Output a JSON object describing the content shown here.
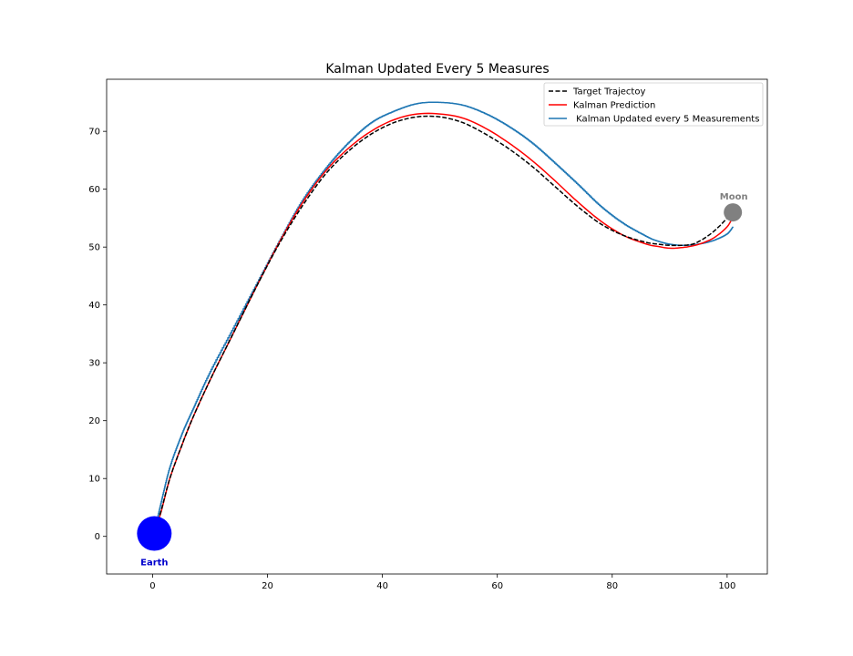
{
  "chart_data": {
    "type": "line",
    "title": "Kalman Updated Every 5 Measures",
    "xlabel": "",
    "ylabel": "",
    "xlim": [
      -8,
      107
    ],
    "ylim": [
      -6.5,
      79
    ],
    "x_ticks": [
      0,
      20,
      40,
      60,
      80,
      100
    ],
    "y_ticks": [
      0,
      10,
      20,
      30,
      40,
      50,
      60,
      70
    ],
    "grid": false,
    "legend_position": "upper right",
    "series": [
      {
        "name": "Target Trajectoy",
        "style": "dashed",
        "color": "#000000",
        "x": [
          0.3,
          1.5,
          3,
          5,
          7,
          10,
          14,
          18,
          22,
          26,
          30,
          34,
          38,
          42,
          46,
          50,
          54,
          58,
          62,
          66,
          70,
          74,
          78,
          82,
          86,
          88,
          90,
          92,
          94,
          96,
          98,
          100,
          101
        ],
        "y": [
          0.5,
          4.5,
          10,
          15.5,
          20.5,
          27,
          35,
          43,
          50.5,
          57,
          62.5,
          66.5,
          69.5,
          71.5,
          72.5,
          72.5,
          71.5,
          69.5,
          67,
          64,
          60.5,
          57,
          54,
          52,
          50.8,
          50.5,
          50.3,
          50.3,
          50.5,
          51.5,
          53,
          55,
          56.3
        ]
      },
      {
        "name": "Kalman Prediction",
        "style": "solid",
        "color": "#ff0000",
        "x": [
          0.3,
          1.5,
          3,
          5,
          7,
          10,
          14,
          18,
          22,
          26,
          30,
          34,
          38,
          42,
          46,
          50,
          54,
          58,
          62,
          66,
          70,
          74,
          78,
          82,
          86,
          88,
          90,
          92,
          94,
          96,
          98,
          100,
          101
        ],
        "y": [
          0.5,
          4.3,
          10,
          15.5,
          20.5,
          27,
          35,
          43,
          50.7,
          57.5,
          63,
          67,
          70,
          72,
          73,
          73,
          72.3,
          70.5,
          68,
          65,
          61.5,
          57.8,
          54.5,
          52,
          50.5,
          50.1,
          49.8,
          49.9,
          50.2,
          50.8,
          51.8,
          53.5,
          55.2
        ]
      },
      {
        "name": " Kalman Updated every 5 Measurements",
        "style": "stepped",
        "color": "#1f77b4",
        "x": [
          0.3,
          1.5,
          3,
          5,
          7,
          10,
          14,
          18,
          22,
          26,
          30,
          34,
          38,
          42,
          46,
          50,
          54,
          58,
          62,
          66,
          70,
          74,
          78,
          82,
          86,
          88,
          90,
          92,
          94,
          96,
          98,
          100,
          101
        ],
        "y": [
          0.8,
          6,
          12,
          17.5,
          22,
          28.5,
          36,
          43.5,
          51,
          58,
          63.5,
          68,
          71.5,
          73.5,
          74.8,
          75,
          74.5,
          73,
          70.8,
          68,
          64.5,
          60.8,
          57,
          54,
          51.8,
          51,
          50.5,
          50.3,
          50.4,
          50.7,
          51.3,
          52.3,
          53.5
        ]
      }
    ],
    "annotations": [
      {
        "text": "Earth",
        "x": 0.3,
        "y": 0.5,
        "color": "#0000cc"
      },
      {
        "text": "Moon",
        "x": 101,
        "y": 56,
        "color": "#808080"
      }
    ],
    "colors": {
      "earth": "#0000ff",
      "earth_label": "#0000cc",
      "moon": "#808080",
      "moon_label": "#808080"
    }
  }
}
